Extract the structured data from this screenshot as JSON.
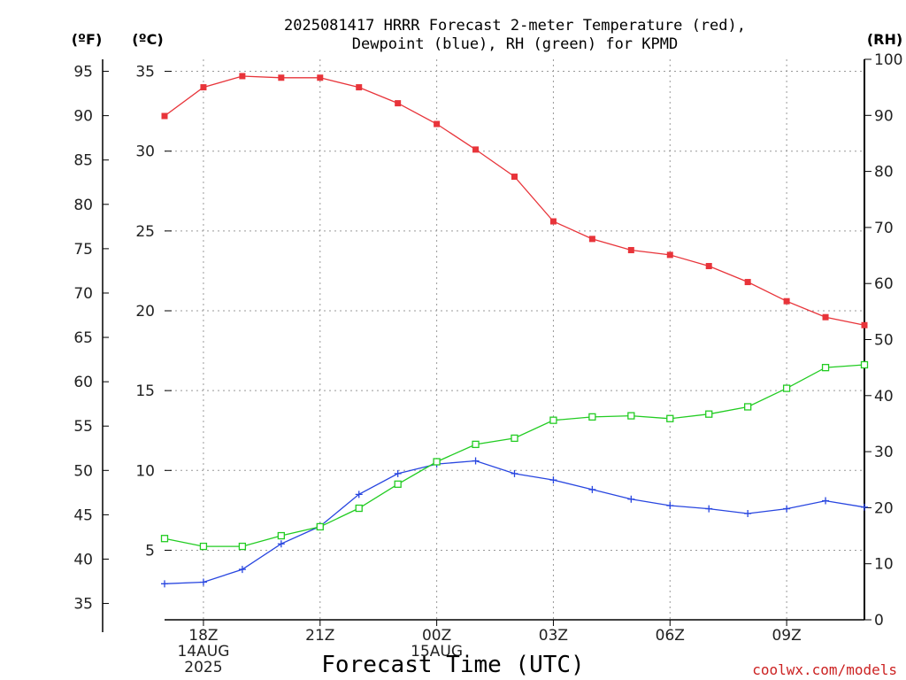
{
  "chart_data": {
    "type": "line",
    "title_line1": "2025081417 HRRR Forecast 2-meter Temperature (red),",
    "title_line2": "Dewpoint (blue), RH (green) for KPMD",
    "xlabel": "Forecast Time (UTC)",
    "credit": "coolwx.com/models",
    "units": {
      "fahrenheit": "(ºF)",
      "celsius": "(ºC)",
      "rh": "(RH)"
    },
    "x_ticks": [
      {
        "hour": 1,
        "label": "18Z",
        "sub1": "14AUG",
        "sub2": "2025"
      },
      {
        "hour": 4,
        "label": "21Z",
        "sub1": "",
        "sub2": ""
      },
      {
        "hour": 7,
        "label": "00Z",
        "sub1": "15AUG",
        "sub2": ""
      },
      {
        "hour": 10,
        "label": "03Z",
        "sub1": "",
        "sub2": ""
      },
      {
        "hour": 13,
        "label": "06Z",
        "sub1": "",
        "sub2": ""
      },
      {
        "hour": 16,
        "label": "09Z",
        "sub1": "",
        "sub2": ""
      }
    ],
    "x": [
      "17Z",
      "18Z",
      "19Z",
      "20Z",
      "21Z",
      "22Z",
      "23Z",
      "00Z",
      "01Z",
      "02Z",
      "03Z",
      "04Z",
      "05Z",
      "06Z",
      "07Z",
      "08Z",
      "09Z",
      "10Z",
      "11Z"
    ],
    "xlim": [
      0,
      18
    ],
    "celsius_ticks": [
      5,
      10,
      15,
      20,
      25,
      30,
      35
    ],
    "fahrenheit_ticks": [
      35,
      40,
      45,
      50,
      55,
      60,
      65,
      70,
      75,
      80,
      85,
      90,
      95
    ],
    "rh_ticks": [
      0,
      10,
      20,
      30,
      40,
      50,
      60,
      70,
      80,
      90,
      100
    ],
    "series": [
      {
        "name": "Temperature",
        "axis": "celsius",
        "color": "#e8343a",
        "marker": "filled-square",
        "values": [
          32.2,
          34.0,
          34.7,
          34.6,
          34.6,
          34.0,
          33.0,
          31.7,
          30.1,
          28.4,
          25.6,
          24.5,
          23.8,
          23.5,
          22.8,
          21.8,
          20.6,
          19.6,
          19.1
        ]
      },
      {
        "name": "Dewpoint",
        "axis": "celsius",
        "color": "#2846e0",
        "marker": "plus",
        "values": [
          2.9,
          3.0,
          3.8,
          5.4,
          6.5,
          8.5,
          9.8,
          10.4,
          10.6,
          9.8,
          9.4,
          8.8,
          8.2,
          7.8,
          7.6,
          7.3,
          7.6,
          8.1,
          7.7
        ]
      },
      {
        "name": "RH",
        "axis": "rh",
        "color": "#22cc22",
        "marker": "open-square",
        "values": [
          14.5,
          13.1,
          13.1,
          15.0,
          16.6,
          19.9,
          24.2,
          28.2,
          31.3,
          32.4,
          35.6,
          36.2,
          36.4,
          35.9,
          36.7,
          38.0,
          41.3,
          45.0,
          45.5
        ]
      }
    ]
  }
}
